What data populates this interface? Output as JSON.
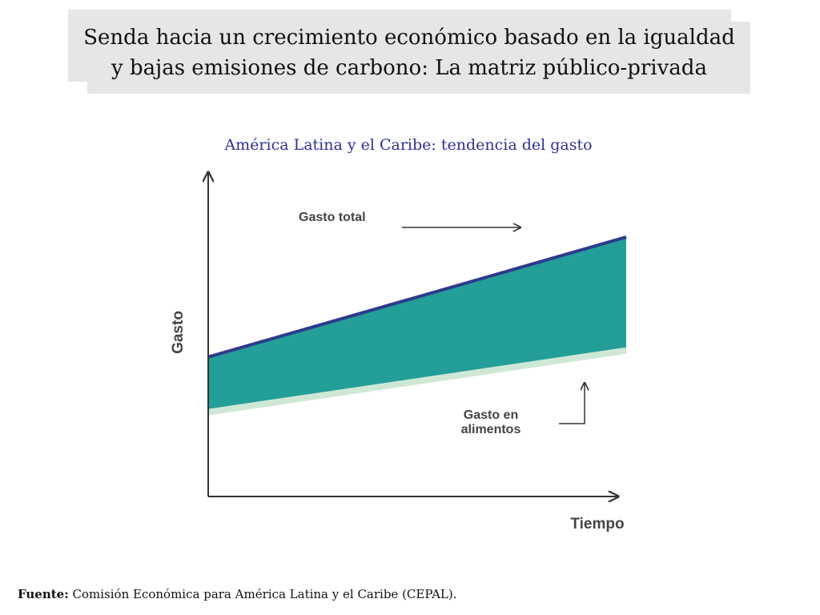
{
  "slide": {
    "title_line1": "Senda hacia un crecimiento económico basado en la igualdad",
    "title_line2": "y bajas emisiones de carbono: La matriz público-privada"
  },
  "chart_data": {
    "type": "area",
    "title": "América Latina y el Caribe: tendencia del gasto",
    "xlabel": "Tiempo",
    "ylabel": "Gasto",
    "x": [
      0,
      1
    ],
    "series": [
      {
        "name": "Gasto total",
        "values": [
          0.43,
          0.8
        ]
      },
      {
        "name": "Gasto en alimentos",
        "values": [
          0.26,
          0.45
        ]
      }
    ],
    "xlim": [
      0,
      1.03
    ],
    "ylim": [
      0,
      1
    ],
    "axis_ticks": false,
    "grid": false,
    "annotations": [
      {
        "label": "Gasto total",
        "line1": "Gasto total",
        "target_series": "Gasto total"
      },
      {
        "label": "Gasto en alimentos",
        "line1": "Gasto en",
        "line2": "alimentos",
        "target_series": "Gasto en alimentos"
      }
    ],
    "colors": {
      "fill": "#239e98",
      "total_line": "#2e3a8c",
      "food_line": "#cfe8d6",
      "axis": "#333333"
    }
  },
  "footer": {
    "source_label": "Fuente:",
    "source_text": "Comisión Económica para América Latina y el Caribe (CEPAL)."
  }
}
